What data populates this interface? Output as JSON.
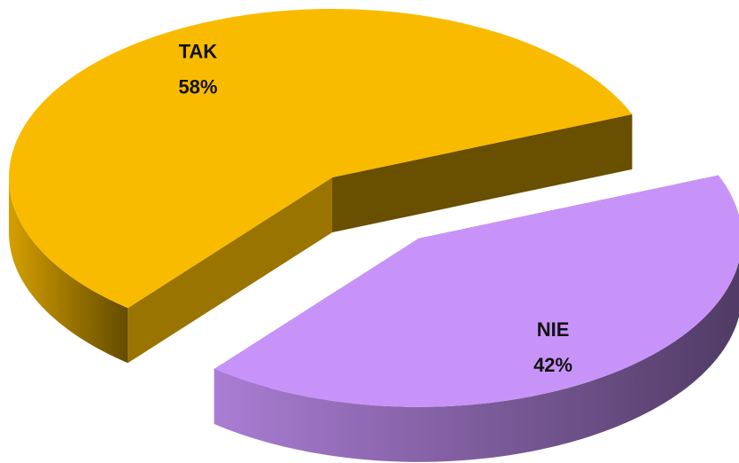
{
  "chart_data": {
    "type": "pie",
    "style": "3d-exploded",
    "categories": [
      "TAK",
      "NIE"
    ],
    "values": [
      58,
      42
    ],
    "value_labels": [
      "58%",
      "42%"
    ],
    "colors": [
      "#f9bb00",
      "#c893f9"
    ]
  }
}
